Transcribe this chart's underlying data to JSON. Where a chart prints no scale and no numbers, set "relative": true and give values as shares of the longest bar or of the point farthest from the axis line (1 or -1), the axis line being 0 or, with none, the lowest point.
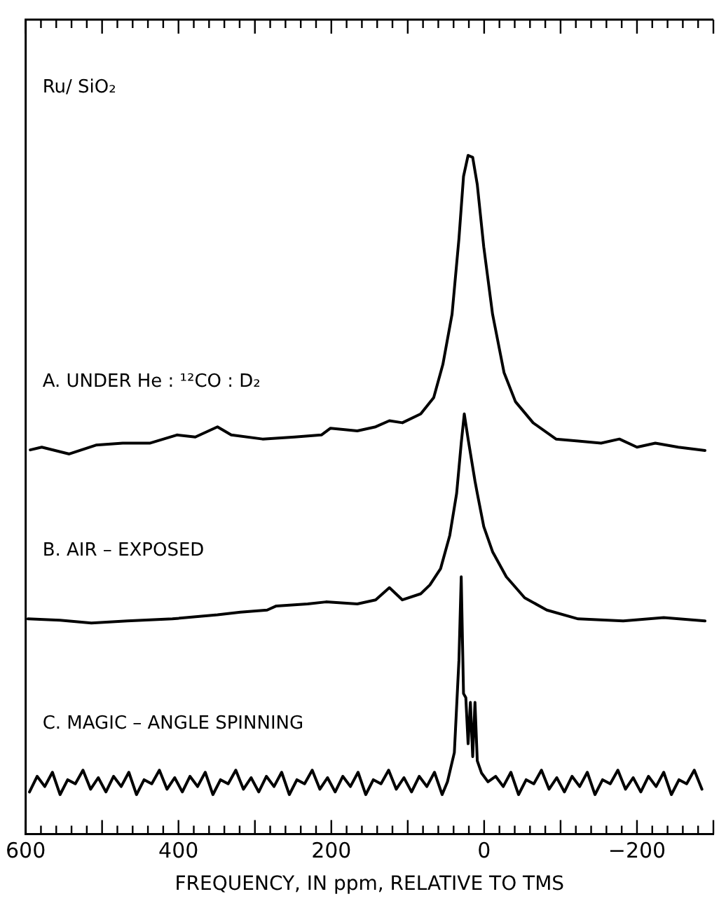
{
  "chart_data": {
    "type": "line",
    "relative": true,
    "xlabel": "FREQUENCY, IN ppm, RELATIVE TO TMS",
    "annotations": [
      "Ru/ SiO₂"
    ],
    "xlim": [
      600,
      -300
    ],
    "xticks": [
      600,
      {
        "value": 580,
        "label": null
      },
      {
        "value": 560,
        "label": null
      },
      {
        "value": 540,
        "label": null
      },
      {
        "value": 520,
        "label": null
      },
      {
        "value": 500,
        "label": null
      },
      {
        "value": 480,
        "label": null
      },
      {
        "value": 460,
        "label": null
      },
      {
        "value": 440,
        "label": null
      },
      {
        "value": 420,
        "label": null
      },
      400,
      {
        "value": 380,
        "label": null
      },
      {
        "value": 360,
        "label": null
      },
      {
        "value": 340,
        "label": null
      },
      {
        "value": 320,
        "label": null
      },
      {
        "value": 300,
        "label": null
      },
      {
        "value": 280,
        "label": null
      },
      {
        "value": 260,
        "label": null
      },
      {
        "value": 240,
        "label": null
      },
      {
        "value": 220,
        "label": null
      },
      200,
      {
        "value": 180,
        "label": null
      },
      {
        "value": 160,
        "label": null
      },
      {
        "value": 140,
        "label": null
      },
      {
        "value": 120,
        "label": null
      },
      {
        "value": 100,
        "label": null
      },
      {
        "value": 80,
        "label": null
      },
      {
        "value": 60,
        "label": null
      },
      {
        "value": 40,
        "label": null
      },
      {
        "value": 20,
        "label": null
      },
      0,
      {
        "value": -20,
        "label": null
      },
      {
        "value": -40,
        "label": null
      },
      {
        "value": -60,
        "label": null
      },
      {
        "value": -80,
        "label": null
      },
      {
        "value": -100,
        "label": null
      },
      {
        "value": -120,
        "label": null
      },
      {
        "value": -140,
        "label": null
      },
      {
        "value": -160,
        "label": null
      },
      {
        "value": -180,
        "label": null
      },
      -200,
      {
        "value": -220,
        "label": null
      },
      {
        "value": -240,
        "label": null
      },
      {
        "value": -260,
        "label": null
      },
      {
        "value": -280,
        "label": null
      },
      {
        "value": -300,
        "label": null
      }
    ],
    "grid": false,
    "legend": false,
    "marker": "none",
    "line_style": "solid",
    "series": [
      {
        "name": "A. UNDER He : ¹²CO : D₂",
        "color": "#000000",
        "x": [
          594,
          579,
          543,
          508,
          473,
          437,
          402,
          378,
          349,
          331,
          290,
          248,
          213,
          201,
          166,
          142,
          124,
          107,
          83,
          66,
          54,
          42,
          33,
          27,
          21,
          15,
          9,
          0.5,
          -11,
          -26,
          -41,
          -64,
          -94,
          -123,
          -153,
          -177,
          -200,
          -224,
          -254,
          -289
        ],
        "values": [
          0.566,
          0.57,
          0.56,
          0.573,
          0.576,
          0.576,
          0.588,
          0.585,
          0.6,
          0.588,
          0.582,
          0.585,
          0.588,
          0.598,
          0.594,
          0.6,
          0.609,
          0.606,
          0.619,
          0.643,
          0.692,
          0.766,
          0.877,
          0.969,
          1.0,
          0.997,
          0.957,
          0.865,
          0.766,
          0.68,
          0.637,
          0.606,
          0.582,
          0.579,
          0.576,
          0.582,
          0.57,
          0.576,
          0.57,
          0.565
        ]
      },
      {
        "name": "B. AIR – EXPOSED",
        "color": "#000000",
        "x": [
          597,
          555,
          514,
          467,
          408,
          349,
          319,
          284,
          272,
          231,
          207,
          166,
          142,
          124,
          107,
          83,
          71,
          57,
          45,
          36,
          30,
          26,
          21,
          12,
          9,
          0.5,
          -11,
          -29,
          -53,
          -82,
          -123,
          -182,
          -235,
          -289
        ],
        "values": [
          0.317,
          0.315,
          0.311,
          0.314,
          0.317,
          0.323,
          0.327,
          0.33,
          0.336,
          0.339,
          0.342,
          0.339,
          0.345,
          0.363,
          0.345,
          0.354,
          0.367,
          0.391,
          0.44,
          0.502,
          0.576,
          0.619,
          0.582,
          0.52,
          0.502,
          0.453,
          0.416,
          0.379,
          0.348,
          0.33,
          0.317,
          0.314,
          0.319,
          0.314
        ]
      },
      {
        "name": "C. MAGIC – ANGLE SPINNING",
        "color": "#000000",
        "x": [
          595,
          585,
          575,
          565,
          555,
          545,
          535,
          525,
          515,
          505,
          495,
          485,
          475,
          465,
          455,
          445,
          435,
          425,
          415,
          405,
          395,
          385,
          375,
          365,
          355,
          345,
          335,
          325,
          315,
          305,
          295,
          285,
          275,
          265,
          255,
          245,
          235,
          225,
          215,
          205,
          195,
          185,
          175,
          165,
          155,
          145,
          135,
          125,
          115,
          105,
          95,
          85,
          75,
          65,
          55,
          48,
          39,
          33,
          30,
          27,
          24,
          21,
          18,
          15,
          12,
          9,
          3.5,
          -5,
          -15,
          -25,
          -35,
          -45,
          -55,
          -65,
          -75,
          -85,
          -95,
          -105,
          -115,
          -125,
          -135,
          -145,
          -155,
          -165,
          -175,
          -185,
          -195,
          -205,
          -215,
          -225,
          -235,
          -245,
          -255,
          -265,
          -275,
          -285
        ],
        "values": [
          0.062,
          0.085,
          0.07,
          0.091,
          0.058,
          0.08,
          0.074,
          0.094,
          0.066,
          0.083,
          0.062,
          0.085,
          0.07,
          0.091,
          0.058,
          0.08,
          0.074,
          0.094,
          0.066,
          0.083,
          0.062,
          0.085,
          0.07,
          0.091,
          0.058,
          0.08,
          0.074,
          0.094,
          0.066,
          0.083,
          0.062,
          0.085,
          0.07,
          0.091,
          0.058,
          0.08,
          0.074,
          0.094,
          0.066,
          0.083,
          0.062,
          0.085,
          0.07,
          0.091,
          0.058,
          0.08,
          0.074,
          0.094,
          0.066,
          0.083,
          0.062,
          0.085,
          0.07,
          0.091,
          0.058,
          0.077,
          0.12,
          0.256,
          0.379,
          0.207,
          0.201,
          0.133,
          0.194,
          0.114,
          0.194,
          0.108,
          0.09,
          0.077,
          0.085,
          0.07,
          0.091,
          0.058,
          0.08,
          0.074,
          0.094,
          0.066,
          0.083,
          0.062,
          0.085,
          0.07,
          0.091,
          0.058,
          0.08,
          0.074,
          0.094,
          0.066,
          0.083,
          0.062,
          0.085,
          0.07,
          0.091,
          0.058,
          0.08,
          0.074,
          0.094,
          0.066
        ]
      }
    ]
  }
}
